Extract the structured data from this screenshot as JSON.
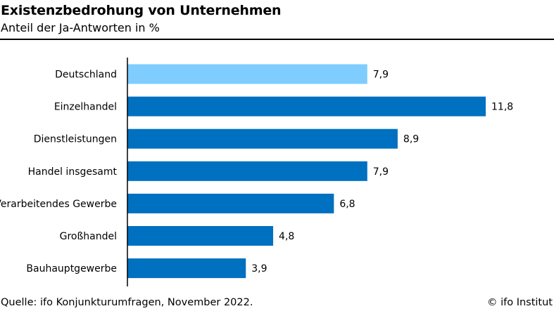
{
  "header": {
    "title": "Existenzbedrohung von Unternehmen",
    "subtitle": "Anteil der Ja-Antworten in %"
  },
  "footer": {
    "source": "Quelle: ifo Konjunkturumfragen, November 2022.",
    "credit": "© ifo Institut"
  },
  "chart_data": {
    "type": "bar",
    "orientation": "horizontal",
    "title": "Existenzbedrohung von Unternehmen",
    "subtitle": "Anteil der Ja-Antworten in %",
    "categories": [
      "Deutschland",
      "Einzelhandel",
      "Dienstleistungen",
      "Handel insgesamt",
      "Verarbeitendes Gewerbe",
      "Großhandel",
      "Bauhauptgewerbe"
    ],
    "values": [
      7.9,
      11.8,
      8.9,
      7.9,
      6.8,
      4.8,
      3.9
    ],
    "value_labels": [
      "7,9",
      "11,8",
      "8,9",
      "7,9",
      "6,8",
      "4,8",
      "3,9"
    ],
    "highlight_index": 0,
    "colors": {
      "highlight": "#7fccff",
      "bar": "#0070c0",
      "axis": "#000000"
    },
    "xlim": [
      0,
      11.8
    ],
    "xlabel": "",
    "ylabel": "",
    "grid": false,
    "legend": "none"
  }
}
